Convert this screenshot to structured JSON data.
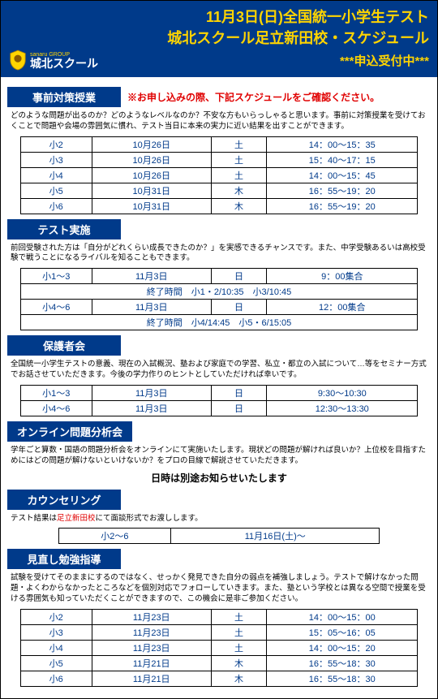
{
  "header": {
    "line1": "11月3日(日)全国統一小学生テスト",
    "line2": "城北スクール足立新田校・スケジュール",
    "logo_top": "sanaru GROUP",
    "logo_main": "城北スクール",
    "accepting": "***申込受付中***"
  },
  "colors": {
    "header_bg": "#003a8a",
    "accent_yellow": "#ffd400",
    "red": "#e00000",
    "table_text": "#003a8a"
  },
  "sections": [
    {
      "title": "事前対策授業",
      "title_note": "※お申し込みの際、下記スケジュールをご確認ください。",
      "desc": "どのような問題が出るのか？どのようなレベルなのか？不安な方もいらっしゃると思います。事前に対策授業を受けておくことで問題や会場の雰囲気に慣れ、テスト当日に本来の実力に近い結果を出すことができます。",
      "table": {
        "cols": [
          "grade",
          "date",
          "day",
          "time"
        ],
        "rows": [
          [
            "小2",
            "10月26日",
            "土",
            "14：00～15：35"
          ],
          [
            "小3",
            "10月26日",
            "土",
            "15：40～17：15"
          ],
          [
            "小4",
            "10月26日",
            "土",
            "14：00～15：45"
          ],
          [
            "小5",
            "10月31日",
            "木",
            "16：55～19：20"
          ],
          [
            "小6",
            "10月31日",
            "木",
            "16：55～19：20"
          ]
        ]
      }
    },
    {
      "title": "テスト実施",
      "desc": "前回受験された方は「自分がどれくらい成長できたのか？」を実感できるチャンスです。また、中学受験あるいは高校受験で戦うことになるライバルを知ることもできます。",
      "table": {
        "rows": [
          [
            "小1～3",
            "11月3日",
            "日",
            "9：00集合"
          ],
          {
            "span": "終了時間　小1・2/10:35　小3/10:45"
          },
          [
            "小4～6",
            "11月3日",
            "日",
            "12：00集合"
          ],
          {
            "span": "終了時間　小4/14:45　小5・6/15:05"
          }
        ]
      }
    },
    {
      "title": "保護者会",
      "desc": "全国統一小学生テストの意義、現在の入試概況、塾および家庭での学習、私立・都立の入試について…等をセミナー方式でお話させていただきます。今後の学力作りのヒントとしていただければ幸いです。",
      "table": {
        "rows": [
          [
            "小1～3",
            "11月3日",
            "日",
            "9:30～10:30"
          ],
          [
            "小4～6",
            "11月3日",
            "日",
            "12:30～13:30"
          ]
        ]
      }
    },
    {
      "title": "オンライン問題分析会",
      "desc": "学年ごと算数・国語の問題分析会をオンラインにて実施いたします。現状どの問題が解ければ良いか？上位校を目指すためにはどの問題が解けないといけないか？をプロの目線で解説させていただきます。",
      "note_center": "日時は別途お知らせいたします"
    },
    {
      "title": "カウンセリング",
      "desc_parts": [
        "テスト結果は",
        "足立新田校",
        "にて面談形式でお渡しします。"
      ],
      "table": {
        "rows": [
          [
            "小2～6",
            "11月16日(土)～"
          ]
        ]
      },
      "single_row": true
    },
    {
      "title": "見直し勉強指導",
      "desc": "試験を受けてそのままにするのではなく、せっかく発見できた自分の弱点を補強しましょう。テストで解けなかった問題・よくわからなかったところなどを個別対応でフォローしていきます。また、塾という学校とは異なる空間で授業を受ける雰囲気も知っていただくことができますので、この機会に是非ご参加ください。",
      "table": {
        "rows": [
          [
            "小2",
            "11月23日",
            "土",
            "14：00～15：00"
          ],
          [
            "小3",
            "11月23日",
            "土",
            "15：05～16：05"
          ],
          [
            "小4",
            "11月23日",
            "土",
            "14：00～15：20"
          ],
          [
            "小5",
            "11月21日",
            "木",
            "16：55～18：30"
          ],
          [
            "小6",
            "11月21日",
            "木",
            "16：55～18：30"
          ]
        ]
      }
    }
  ]
}
